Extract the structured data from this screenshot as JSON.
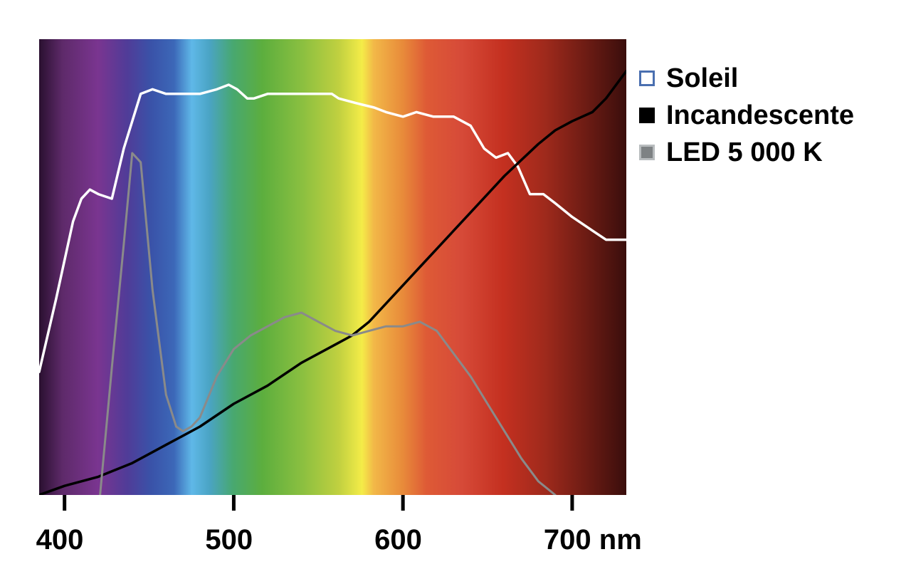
{
  "chart_data": {
    "type": "line",
    "xlabel": "",
    "ylabel": "",
    "x_unit": "nm",
    "xlim": [
      385,
      732
    ],
    "ylim": [
      0,
      100
    ],
    "x_ticks": [
      {
        "value": 400,
        "label": "400"
      },
      {
        "value": 500,
        "label": "500"
      },
      {
        "value": 600,
        "label": "600"
      },
      {
        "value": 700,
        "label": "700 nm"
      }
    ],
    "grid": false,
    "y_axis_labels": false,
    "background": "visible light spectrum gradient (violet to deep red)",
    "legend_position": "right",
    "series": [
      {
        "name": "Soleil",
        "color": "#ffffff",
        "swatch_border": "#4a6fb0",
        "x": [
          385,
          395,
          405,
          410,
          415,
          420,
          428,
          435,
          445,
          452,
          460,
          470,
          480,
          490,
          497,
          502,
          508,
          512,
          520,
          530,
          545,
          558,
          562,
          572,
          583,
          590,
          600,
          608,
          618,
          630,
          640,
          648,
          655,
          662,
          668,
          675,
          683,
          690,
          700,
          712,
          720,
          732
        ],
        "y": [
          27,
          43,
          60,
          65,
          67,
          66,
          65,
          76,
          88,
          89,
          88,
          88,
          88,
          89,
          90,
          89,
          87,
          87,
          88,
          88,
          88,
          88,
          87,
          86,
          85,
          84,
          83,
          84,
          83,
          83,
          81,
          76,
          74,
          75,
          72,
          66,
          66,
          64,
          61,
          58,
          56,
          56
        ]
      },
      {
        "name": "Incandescente",
        "color": "#000000",
        "x": [
          385,
          400,
          420,
          440,
          460,
          480,
          500,
          520,
          540,
          560,
          570,
          580,
          590,
          600,
          610,
          620,
          640,
          660,
          680,
          690,
          700,
          712,
          720,
          732
        ],
        "y": [
          0,
          2,
          4,
          7,
          11,
          15,
          20,
          24,
          29,
          33,
          35,
          38,
          42,
          46,
          50,
          54,
          62,
          70,
          77,
          80,
          82,
          84,
          87,
          93
        ]
      },
      {
        "name": "LED 5 000 K",
        "color": "#8a8a8a",
        "x": [
          421,
          428,
          435,
          440,
          445,
          452,
          460,
          466,
          470,
          475,
          480,
          490,
          500,
          510,
          520,
          530,
          540,
          550,
          560,
          570,
          580,
          590,
          600,
          610,
          620,
          630,
          640,
          650,
          660,
          670,
          680,
          690
        ],
        "y": [
          0,
          28,
          55,
          75,
          73,
          45,
          22,
          15,
          14,
          15,
          17,
          26,
          32,
          35,
          37,
          39,
          40,
          38,
          36,
          35,
          36,
          37,
          37,
          38,
          36,
          31,
          26,
          20,
          14,
          8,
          3,
          0
        ]
      }
    ]
  }
}
